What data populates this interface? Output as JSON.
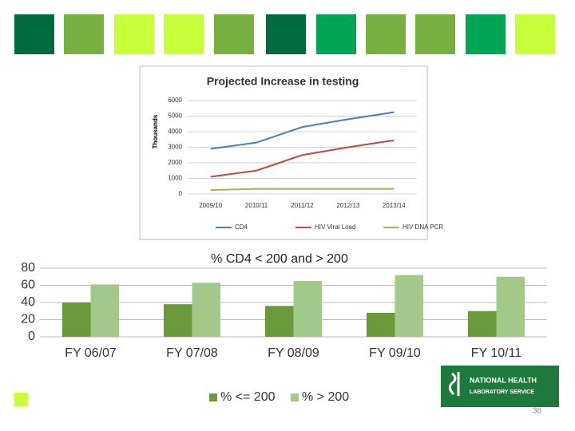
{
  "chart_data": [
    {
      "type": "line",
      "title": "Projected Increase in testing",
      "y_label": "Thousands",
      "categories": [
        "2009/10",
        "2010/11",
        "2011/12",
        "2012/13",
        "2013/14"
      ],
      "series": [
        {
          "name": "CD4",
          "color": "#4a7ebb",
          "values": [
            2900,
            3300,
            4300,
            4800,
            5250
          ]
        },
        {
          "name": "HIV Viral Load",
          "color": "#be4b48",
          "values": [
            1100,
            1500,
            2500,
            3000,
            3450
          ]
        },
        {
          "name": "HIV DNA PCR",
          "color": "#98b954",
          "values": [
            250,
            330,
            330,
            330,
            330
          ]
        }
      ],
      "ylim": [
        0,
        6000
      ],
      "yticks": [
        0,
        1000,
        2000,
        3000,
        4000,
        5000,
        6000
      ],
      "grid": true,
      "legend": "bottom"
    },
    {
      "type": "bar",
      "title": "% CD4 < 200 and > 200",
      "categories": [
        "FY 06/07",
        "FY 07/08",
        "FY 08/09",
        "FY 09/10",
        "FY 10/11"
      ],
      "series": [
        {
          "name": "% <= 200",
          "color": "#6a9a3a",
          "values": [
            40,
            38,
            36,
            28,
            30
          ]
        },
        {
          "name": "% > 200",
          "color": "#a3c98a",
          "values": [
            61,
            63,
            65,
            72,
            70
          ]
        }
      ],
      "ylim": [
        0,
        80
      ],
      "yticks": [
        0,
        20,
        40,
        60,
        80
      ],
      "grid": true,
      "legend": "bottom"
    }
  ],
  "logo": [
    "NATIONAL HEALTH",
    "LABORATORY SERVICE"
  ],
  "page_number": "36"
}
